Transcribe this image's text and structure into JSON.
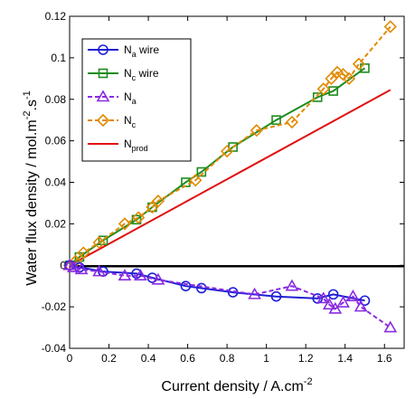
{
  "chart_data": {
    "type": "line",
    "xlabel": "Current density / A.cm",
    "xlabel_sup": "-2",
    "ylabel_parts": [
      {
        "t": "Water flux density / mol.m",
        "sup": false
      },
      {
        "t": "-2",
        "sup": true
      },
      {
        "t": ".s",
        "sup": false
      },
      {
        "t": "-1",
        "sup": true
      }
    ],
    "xlim": [
      0,
      1.7
    ],
    "ylim": [
      -0.04,
      0.12
    ],
    "x_ticks": [
      0,
      0.2,
      0.4,
      0.6,
      0.8,
      1,
      1.2,
      1.4,
      1.6
    ],
    "x_tick_labels": [
      "0",
      "0.2",
      "0.4",
      "0.6",
      "0.8",
      "1",
      "1.2",
      "1.4",
      "1.6"
    ],
    "y_ticks": [
      -0.04,
      -0.02,
      0,
      0.02,
      0.04,
      0.06,
      0.08,
      0.1,
      0.12
    ],
    "y_tick_labels": [
      "-0.04",
      "-0.02",
      "0",
      "0.02",
      "0.04",
      "0.06",
      "0.08",
      "0.1",
      "0.12"
    ],
    "grid": false,
    "legend_position": "top-left",
    "zero_line": true,
    "series": [
      {
        "name": "N_a wire",
        "legend": {
          "base": "N",
          "sub": "a",
          "suffix": " wire"
        },
        "color": "#1f1fd6",
        "marker": "circle",
        "dash": "solid",
        "x": [
          0.0,
          0.05,
          0.17,
          0.34,
          0.42,
          0.59,
          0.67,
          0.83,
          1.05,
          1.26,
          1.34,
          1.5
        ],
        "y": [
          0.0,
          -0.001,
          -0.003,
          -0.004,
          -0.006,
          -0.01,
          -0.011,
          -0.013,
          -0.015,
          -0.016,
          -0.014,
          -0.017
        ]
      },
      {
        "name": "N_c wire",
        "legend": {
          "base": "N",
          "sub": "c",
          "suffix": " wire"
        },
        "color": "#1e8c1e",
        "marker": "square",
        "dash": "solid",
        "x": [
          0.0,
          0.05,
          0.17,
          0.34,
          0.42,
          0.59,
          0.67,
          0.83,
          1.05,
          1.26,
          1.34,
          1.5
        ],
        "y": [
          0.0,
          0.004,
          0.012,
          0.022,
          0.028,
          0.04,
          0.045,
          0.057,
          0.07,
          0.081,
          0.084,
          0.095
        ]
      },
      {
        "name": "N_a",
        "legend": {
          "base": "N",
          "sub": "a",
          "suffix": ""
        },
        "color": "#8a2be2",
        "marker": "triangle",
        "dash": "dashed",
        "x": [
          0.0,
          0.02,
          0.06,
          0.15,
          0.28,
          0.36,
          0.45,
          0.94,
          1.13,
          1.29,
          1.32,
          1.35,
          1.39,
          1.44,
          1.48,
          1.63
        ],
        "y": [
          0.0,
          -0.001,
          -0.002,
          -0.003,
          -0.005,
          -0.005,
          -0.007,
          -0.014,
          -0.01,
          -0.016,
          -0.019,
          -0.021,
          -0.018,
          -0.015,
          -0.02,
          -0.03
        ]
      },
      {
        "name": "N_c",
        "legend": {
          "base": "N",
          "sub": "c",
          "suffix": ""
        },
        "color": "#e08a00",
        "marker": "diamond",
        "dash": "dashed",
        "x": [
          0.0,
          0.03,
          0.07,
          0.15,
          0.28,
          0.35,
          0.42,
          0.45,
          0.64,
          0.8,
          0.95,
          1.13,
          1.29,
          1.33,
          1.36,
          1.39,
          1.42,
          1.47,
          1.63
        ],
        "y": [
          0.0,
          0.002,
          0.006,
          0.011,
          0.02,
          0.023,
          0.028,
          0.031,
          0.041,
          0.055,
          0.065,
          0.069,
          0.085,
          0.09,
          0.093,
          0.092,
          0.09,
          0.097,
          0.115
        ]
      },
      {
        "name": "N_prod",
        "legend": {
          "base": "N",
          "sub": "prod",
          "suffix": ""
        },
        "color": "#e01010",
        "marker": "none",
        "dash": "solid",
        "x": [
          0.0,
          1.63
        ],
        "y": [
          0.0,
          0.0845
        ]
      }
    ]
  }
}
